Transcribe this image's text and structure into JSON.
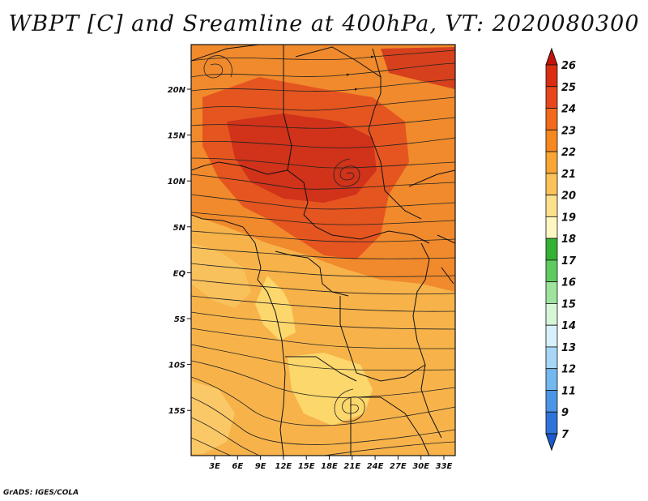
{
  "title": "WBPT [C] and Sreamline at 400hPa, VT: 2020080300",
  "credit": "GrADS: IGES/COLA",
  "map": {
    "lon_labels": [
      "3E",
      "6E",
      "9E",
      "12E",
      "15E",
      "18E",
      "21E",
      "24E",
      "27E",
      "30E",
      "33E"
    ],
    "lat_labels": [
      "20N",
      "15N",
      "10N",
      "5N",
      "EQ",
      "5S",
      "10S",
      "15S"
    ]
  },
  "colorbar": {
    "labels": [
      "26",
      "25",
      "24",
      "23",
      "22",
      "21",
      "20",
      "19",
      "18",
      "17",
      "16",
      "15",
      "14",
      "13",
      "12",
      "11",
      "9",
      "7"
    ],
    "colors": [
      "#c4120a",
      "#da2d12",
      "#e8461c",
      "#f26a1c",
      "#f5881e",
      "#f9a634",
      "#fcc25a",
      "#fde08c",
      "#fff7c2",
      "#33b233",
      "#5fcb5f",
      "#9de39d",
      "#d7f5d7",
      "#d8f0fb",
      "#a7d6f6",
      "#73b8ee",
      "#4a95e4",
      "#2e73d8",
      "#1a59cc"
    ]
  },
  "fill_colors": {
    "deep_red": "#d0321a",
    "red_orange": "#e55520",
    "orange": "#f08a2c",
    "light_orange": "#f5a540",
    "yellow": "#fcd76c"
  }
}
